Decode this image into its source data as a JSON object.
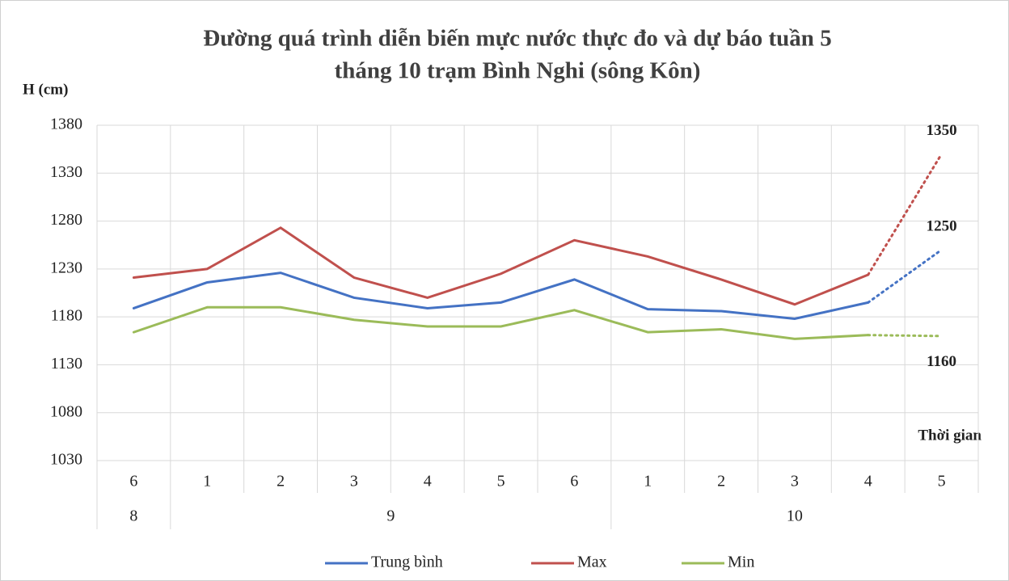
{
  "chart_data": {
    "type": "line",
    "title": [
      "Đường quá trình diễn biến mực nước thực đo và dự báo tuần 5",
      "tháng 10 trạm Bình Nghi (sông Kôn)"
    ],
    "y_label": "H (cm)",
    "x_label": "Thời gian",
    "categories": [
      "6",
      "1",
      "2",
      "3",
      "4",
      "5",
      "6",
      "1",
      "2",
      "3",
      "4",
      "5"
    ],
    "groups": [
      {
        "label": "8",
        "span": 1
      },
      {
        "label": "9",
        "span": 6
      },
      {
        "label": "10",
        "span": 5
      }
    ],
    "forecast_from": 10,
    "series": [
      {
        "name": "Trung bình",
        "color": "#4472c4",
        "values": [
          1189,
          1216,
          1226,
          1200,
          1189,
          1195,
          1219,
          1188,
          1186,
          1178,
          1195,
          1250
        ],
        "labeled": [
          11
        ]
      },
      {
        "name": "Max",
        "color": "#c0504d",
        "values": [
          1221,
          1230,
          1273,
          1221,
          1200,
          1225,
          1260,
          1243,
          1219,
          1193,
          1224,
          1350
        ],
        "labeled": [
          11
        ]
      },
      {
        "name": "Min",
        "color": "#9bbb59",
        "values": [
          1164,
          1190,
          1190,
          1177,
          1170,
          1170,
          1187,
          1164,
          1167,
          1157,
          1161,
          1160
        ],
        "labeled": [
          11
        ]
      }
    ],
    "ylim": [
      1030,
      1380
    ],
    "yticks": [
      1030,
      1080,
      1130,
      1180,
      1230,
      1280,
      1330,
      1380
    ],
    "grid": true,
    "legend": "bottom"
  }
}
